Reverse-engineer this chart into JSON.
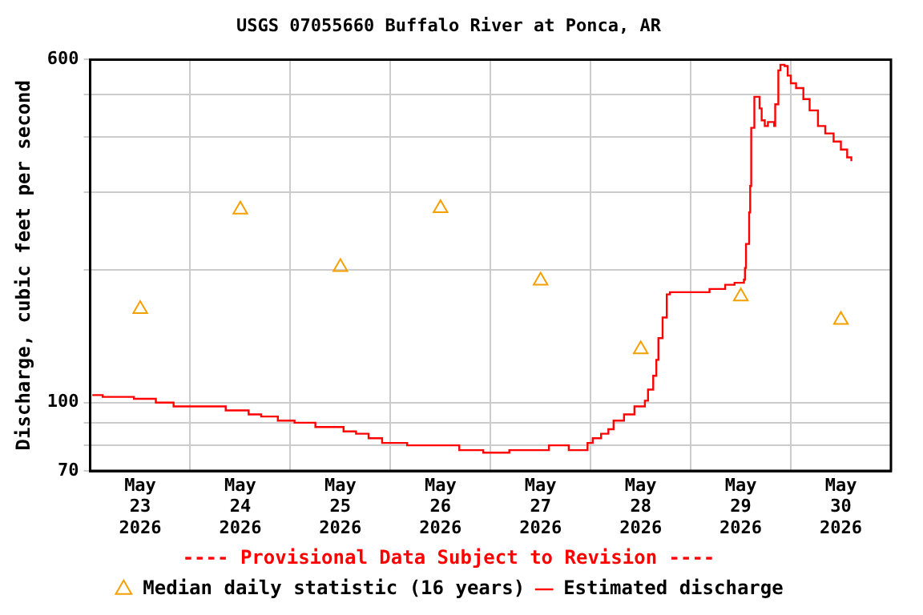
{
  "chart_data": {
    "type": "step",
    "title": "USGS 07055660 Buffalo River at Ponca, AR",
    "ylabel": "Discharge, cubic feet per second",
    "annotations": [
      "---- Provisional Data Subject to Revision ----"
    ],
    "log": "y",
    "grid": true,
    "legend": "bottom",
    "xlim": [
      "2026-05-23T00:00",
      "2026-05-31T00:00"
    ],
    "xticks": [
      {
        "value": "2026-05-23T12:00",
        "label": "May\n23\n2026"
      },
      {
        "value": "2026-05-24T00:00",
        "label": null
      },
      {
        "value": "2026-05-24T12:00",
        "label": "May\n24\n2026"
      },
      {
        "value": "2026-05-25T00:00",
        "label": null
      },
      {
        "value": "2026-05-25T12:00",
        "label": "May\n25\n2026"
      },
      {
        "value": "2026-05-26T00:00",
        "label": null
      },
      {
        "value": "2026-05-26T12:00",
        "label": "May\n26\n2026"
      },
      {
        "value": "2026-05-27T00:00",
        "label": null
      },
      {
        "value": "2026-05-27T12:00",
        "label": "May\n27\n2026"
      },
      {
        "value": "2026-05-28T00:00",
        "label": null
      },
      {
        "value": "2026-05-28T12:00",
        "label": "May\n28\n2026"
      },
      {
        "value": "2026-05-29T00:00",
        "label": null
      },
      {
        "value": "2026-05-29T12:00",
        "label": "May\n29\n2026"
      },
      {
        "value": "2026-05-30T00:00",
        "label": null
      },
      {
        "value": "2026-05-30T12:00",
        "label": "May\n30\n2026"
      }
    ],
    "ylim": [
      70,
      600
    ],
    "yticks": [
      70,
      {
        "value": 80,
        "label": null
      },
      {
        "value": 90,
        "label": null
      },
      100,
      {
        "value": 200,
        "label": null
      },
      {
        "value": 300,
        "label": null
      },
      {
        "value": 400,
        "label": null
      },
      {
        "value": 500,
        "label": null
      },
      600
    ],
    "series": [
      {
        "name": "Median daily statistic (16 years)",
        "type": "scatter",
        "marker": "triangle",
        "color": "#f5a000",
        "x": [
          "2026-05-23T12:00",
          "2026-05-24T12:00",
          "2026-05-25T12:00",
          "2026-05-26T12:00",
          "2026-05-27T12:00",
          "2026-05-28T12:00",
          "2026-05-29T12:00",
          "2026-05-30T12:00"
        ],
        "values": [
          163,
          274,
          203,
          276,
          189,
          132,
          174,
          154
        ]
      },
      {
        "name": "Estimated discharge",
        "marker": "none",
        "color": "#ff0000",
        "x": [
          "2026-05-23T00:30",
          "2026-05-23T03:00",
          "2026-05-23T10:30",
          "2026-05-23T15:45",
          "2026-05-23T20:00",
          "2026-05-24T08:30",
          "2026-05-24T14:00",
          "2026-05-24T17:00",
          "2026-05-24T21:00",
          "2026-05-25T01:00",
          "2026-05-25T06:00",
          "2026-05-25T12:45",
          "2026-05-25T15:45",
          "2026-05-25T18:45",
          "2026-05-25T22:00",
          "2026-05-26T04:00",
          "2026-05-26T16:30",
          "2026-05-26T22:15",
          "2026-05-27T04:30",
          "2026-05-27T14:00",
          "2026-05-27T18:45",
          "2026-05-27T23:15",
          "2026-05-28T00:30",
          "2026-05-28T02:30",
          "2026-05-28T04:15",
          "2026-05-28T05:30",
          "2026-05-28T08:00",
          "2026-05-28T10:30",
          "2026-05-28T13:00",
          "2026-05-28T13:45",
          "2026-05-28T15:00",
          "2026-05-28T15:45",
          "2026-05-28T16:15",
          "2026-05-28T17:15",
          "2026-05-28T18:15",
          "2026-05-28T19:00",
          "2026-05-29T04:30",
          "2026-05-29T08:15",
          "2026-05-29T10:30",
          "2026-05-29T12:45",
          "2026-05-29T13:00",
          "2026-05-29T13:15",
          "2026-05-29T14:00",
          "2026-05-29T14:15",
          "2026-05-29T14:30",
          "2026-05-29T15:15",
          "2026-05-29T16:30",
          "2026-05-29T17:00",
          "2026-05-29T17:45",
          "2026-05-29T18:30",
          "2026-05-29T20:00",
          "2026-05-29T20:15",
          "2026-05-29T21:00",
          "2026-05-29T21:30",
          "2026-05-29T22:30",
          "2026-05-29T23:15",
          "2026-05-30T00:00",
          "2026-05-30T01:15",
          "2026-05-30T03:00",
          "2026-05-30T04:30",
          "2026-05-30T06:30",
          "2026-05-30T08:15",
          "2026-05-30T10:15",
          "2026-05-30T12:00",
          "2026-05-30T13:30",
          "2026-05-30T14:30"
        ],
        "values": [
          104,
          103,
          102,
          100,
          98,
          96,
          94,
          93,
          91,
          90,
          88,
          86,
          85,
          83,
          81,
          80,
          78,
          77,
          78,
          80,
          78,
          81,
          83,
          85,
          87,
          91,
          94,
          98,
          101,
          107,
          115,
          125,
          140,
          156,
          176,
          178,
          181,
          185,
          187,
          190,
          202,
          229,
          270,
          310,
          420,
          494,
          465,
          437,
          424,
          433,
          424,
          475,
          567,
          584,
          580,
          552,
          530,
          517,
          488,
          460,
          424,
          408,
          391,
          375,
          360,
          353
        ]
      }
    ]
  }
}
